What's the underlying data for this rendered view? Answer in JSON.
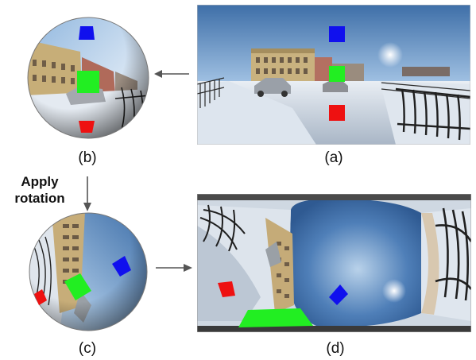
{
  "labels": {
    "a": "(a)",
    "b": "(b)",
    "c": "(c)",
    "d": "(d)"
  },
  "step": {
    "line1": "Apply",
    "line2": "rotation"
  },
  "colors": {
    "blue_marker": "#1010ee",
    "green_marker": "#22ee22",
    "red_marker": "#ee1111",
    "arrow": "#555555"
  }
}
